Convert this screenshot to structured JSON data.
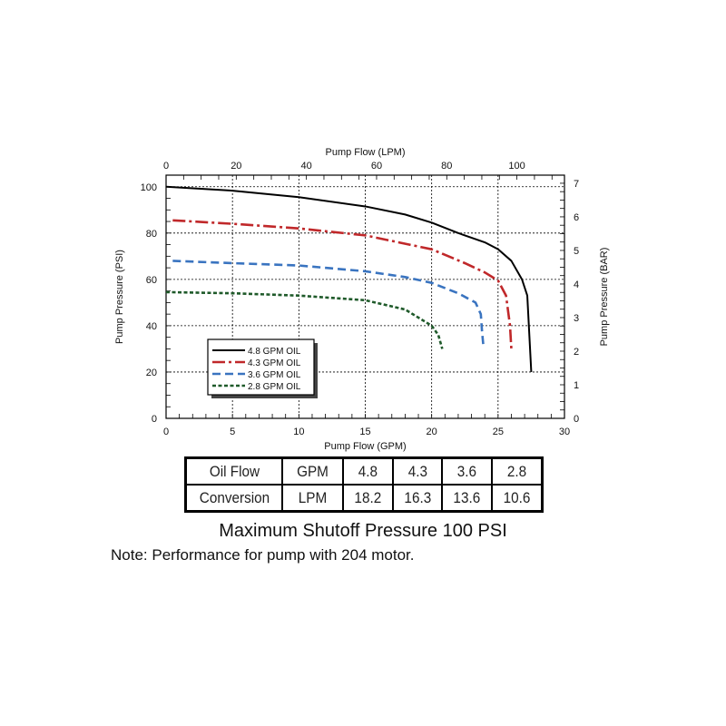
{
  "chart_data": {
    "type": "line",
    "xlabel": "Pump Flow (GPM)",
    "x2label": "Pump Flow (LPM)",
    "ylabel": "Pump Pressure (PSI)",
    "y2label": "Pump Pressure (BAR)",
    "xlim": [
      0,
      30
    ],
    "ylim": [
      0,
      105
    ],
    "xticks": [
      0,
      5,
      10,
      15,
      20,
      25,
      30
    ],
    "yticks": [
      0,
      20,
      40,
      60,
      80,
      100
    ],
    "x2ticks": [
      0,
      20,
      40,
      60,
      80,
      100
    ],
    "y2ticks": [
      0,
      1,
      2,
      3,
      4,
      5,
      6,
      7
    ],
    "lpm_per_gpm": 3.785,
    "psi_per_bar": 14.5,
    "grid": true,
    "legend_position": "lower-left",
    "series": [
      {
        "name": "4.8 GPM OIL",
        "color": "#000000",
        "dash": "solid",
        "x": [
          0,
          5,
          10,
          15,
          18,
          20,
          22,
          24,
          25,
          26,
          26.8,
          27.2,
          27.5
        ],
        "y": [
          100,
          98.3,
          95.5,
          91.5,
          88,
          84.5,
          80,
          76,
          73,
          68,
          60,
          53,
          20
        ]
      },
      {
        "name": "4.3 GPM OIL",
        "color": "#c0282a",
        "dash": "dashdot",
        "x": [
          0.5,
          5,
          10,
          15,
          20,
          22.5,
          24,
          25,
          25.6,
          25.9,
          26
        ],
        "y": [
          85.5,
          84,
          82,
          79,
          73,
          67,
          63,
          59.5,
          53,
          40,
          30
        ]
      },
      {
        "name": "3.6 GPM OIL",
        "color": "#3a74c0",
        "dash": "dashed",
        "x": [
          0.5,
          5,
          10,
          15,
          18,
          20,
          22,
          23.3,
          23.7,
          23.8,
          23.9
        ],
        "y": [
          68,
          67,
          66,
          63.5,
          61,
          58.5,
          54,
          50,
          45,
          37,
          31
        ]
      },
      {
        "name": "2.8 GPM OIL",
        "color": "#1f5a2a",
        "dash": "dotted",
        "x": [
          0,
          5,
          10,
          15,
          18,
          20,
          20.5,
          20.8
        ],
        "y": [
          54.5,
          54,
          53,
          51,
          47,
          40,
          36,
          30
        ]
      }
    ]
  },
  "table": {
    "rows": [
      [
        "Oil Flow",
        "GPM",
        "4.8",
        "4.3",
        "3.6",
        "2.8"
      ],
      [
        "Conversion",
        "LPM",
        "18.2",
        "16.3",
        "13.6",
        "10.6"
      ]
    ]
  },
  "title": "Maximum Shutoff Pressure  100 PSI",
  "note": "Note: Performance for pump with 204 motor."
}
